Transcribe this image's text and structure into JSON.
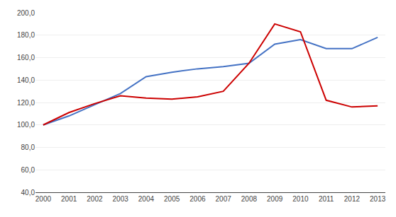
{
  "chart_data": {
    "type": "line",
    "x": [
      2000,
      2001,
      2002,
      2003,
      2004,
      2005,
      2006,
      2007,
      2008,
      2009,
      2010,
      2011,
      2012,
      2013
    ],
    "series": [
      {
        "color": "#4472C4",
        "values": [
          100.0,
          108.0,
          118.0,
          128.0,
          143.0,
          147.0,
          150.0,
          152.0,
          155.0,
          172.0,
          176.0,
          168.0,
          168.0,
          178.0
        ]
      },
      {
        "color": "#CC0000",
        "values": [
          100.0,
          111.0,
          119.0,
          126.0,
          124.0,
          123.0,
          125.0,
          130.0,
          155.0,
          190.0,
          183.0,
          122.0,
          116.0,
          117.0
        ]
      }
    ],
    "xlim": [
      1999.7,
      2013.3
    ],
    "xticks": [
      2000,
      2001,
      2002,
      2003,
      2004,
      2005,
      2006,
      2007,
      2008,
      2009,
      2010,
      2011,
      2012,
      2013
    ],
    "ylim": [
      40.0,
      200.0
    ],
    "yticks": [
      {
        "value": 40.0,
        "label": "40,0"
      },
      {
        "value": 60.0,
        "label": "60,0"
      },
      {
        "value": 80.0,
        "label": "80,0"
      },
      {
        "value": 100.0,
        "label": "100,0"
      },
      {
        "value": 120.0,
        "label": "120,0"
      },
      {
        "value": 140.0,
        "label": "140,0"
      },
      {
        "value": 160.0,
        "label": "160,0"
      },
      {
        "value": 180.0,
        "label": "180,0"
      },
      {
        "value": 200.0,
        "label": "200,0"
      }
    ],
    "grid": true
  }
}
